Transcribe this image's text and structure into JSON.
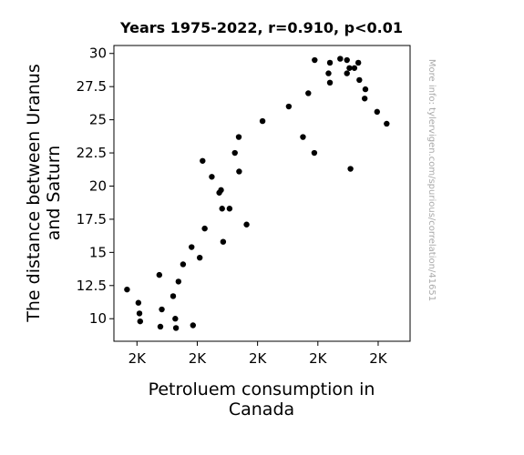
{
  "chart_data": {
    "type": "scatter",
    "title": "Years 1975-2022, r=0.910, p<0.01",
    "xlabel_lines": [
      "Petroluem consumption in",
      "Canada"
    ],
    "ylabel_lines": [
      "The distance between Uranus",
      "and Saturn"
    ],
    "xlim": [
      1455,
      2290
    ],
    "ylim": [
      8.3,
      30.6
    ],
    "x_ticks": [
      1520,
      1690,
      1860,
      2030,
      2200
    ],
    "x_tick_labels": [
      "2K",
      "2K",
      "2K",
      "2K",
      "2K"
    ],
    "y_ticks": [
      10,
      12.5,
      15,
      17.5,
      20,
      22.5,
      25,
      27.5,
      30
    ],
    "y_tick_labels": [
      "10",
      "12.5",
      "15",
      "17.5",
      "20",
      "22.5",
      "25",
      "27.5",
      "30"
    ],
    "marker_color": "#000000",
    "points": [
      {
        "x": 1492,
        "y": 12.2
      },
      {
        "x": 1524,
        "y": 11.2
      },
      {
        "x": 1527,
        "y": 10.4
      },
      {
        "x": 1529,
        "y": 9.8
      },
      {
        "x": 1583,
        "y": 13.3
      },
      {
        "x": 1590,
        "y": 10.7
      },
      {
        "x": 1586,
        "y": 9.4
      },
      {
        "x": 1628,
        "y": 10.0
      },
      {
        "x": 1630,
        "y": 9.3
      },
      {
        "x": 1622,
        "y": 11.7
      },
      {
        "x": 1637,
        "y": 12.8
      },
      {
        "x": 1650,
        "y": 14.1
      },
      {
        "x": 1678,
        "y": 9.5
      },
      {
        "x": 1674,
        "y": 15.4
      },
      {
        "x": 1697,
        "y": 14.6
      },
      {
        "x": 1711,
        "y": 16.8
      },
      {
        "x": 1705,
        "y": 21.9
      },
      {
        "x": 1731,
        "y": 20.7
      },
      {
        "x": 1752,
        "y": 19.5
      },
      {
        "x": 1757,
        "y": 19.7
      },
      {
        "x": 1763,
        "y": 15.8
      },
      {
        "x": 1760,
        "y": 18.3
      },
      {
        "x": 1781,
        "y": 18.3
      },
      {
        "x": 1796,
        "y": 22.5
      },
      {
        "x": 1807,
        "y": 23.7
      },
      {
        "x": 1808,
        "y": 21.1
      },
      {
        "x": 1829,
        "y": 17.1
      },
      {
        "x": 1874,
        "y": 24.9
      },
      {
        "x": 1948,
        "y": 26.0
      },
      {
        "x": 1988,
        "y": 23.7
      },
      {
        "x": 2003,
        "y": 27.0
      },
      {
        "x": 2021,
        "y": 29.5
      },
      {
        "x": 2020,
        "y": 22.5
      },
      {
        "x": 2060,
        "y": 28.5
      },
      {
        "x": 2064,
        "y": 27.8
      },
      {
        "x": 2064,
        "y": 29.3
      },
      {
        "x": 2093,
        "y": 29.6
      },
      {
        "x": 2112,
        "y": 28.5
      },
      {
        "x": 2112,
        "y": 29.5
      },
      {
        "x": 2119,
        "y": 28.9
      },
      {
        "x": 2122,
        "y": 21.3
      },
      {
        "x": 2133,
        "y": 28.9
      },
      {
        "x": 2144,
        "y": 29.3
      },
      {
        "x": 2147,
        "y": 28.0
      },
      {
        "x": 2164,
        "y": 27.3
      },
      {
        "x": 2162,
        "y": 26.6
      },
      {
        "x": 2197,
        "y": 25.6
      },
      {
        "x": 2224,
        "y": 24.7
      }
    ]
  },
  "watermark": "More info: tylervigen.com/spurious/correlation/41651"
}
